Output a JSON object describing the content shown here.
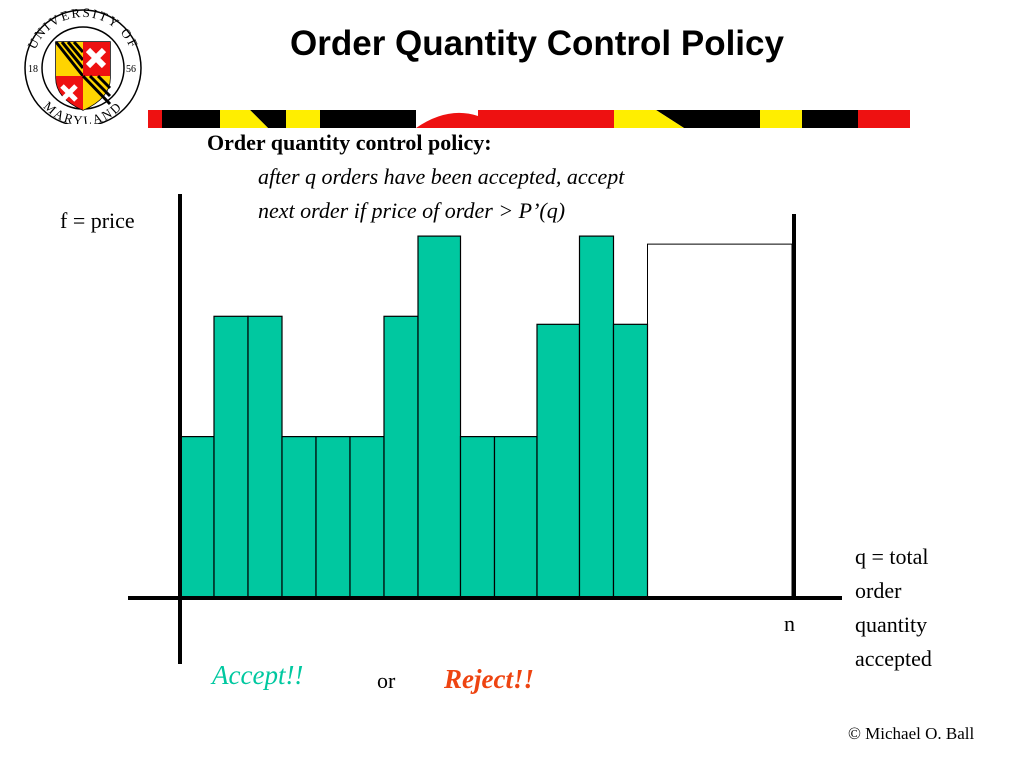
{
  "slide": {
    "title": "Order Quantity Control Policy",
    "logo_text_top": "UNIVERSITY OF",
    "logo_text_bottom": "MARYLAND",
    "logo_year_left": "18",
    "logo_year_right": "56",
    "policy_heading": "Order quantity control policy:",
    "policy_line1": "after q orders have been accepted,  accept",
    "policy_line2": "next order if price of order > P’(q)",
    "n_label": "n",
    "accept_label": "Accept!!",
    "or_label": "or",
    "reject_label": "Reject!!",
    "copyright": "© Michael O. Ball"
  },
  "colors": {
    "bar_fill": "#00c8a0",
    "accept": "#00c8a0",
    "reject": "#ee4411",
    "flag_black": "#000000",
    "flag_yellow": "#ffee00",
    "flag_red": "#ee1111"
  },
  "chart_data": {
    "type": "bar",
    "ylabel": "f = price",
    "xlabel": "q = total order quantity accepted",
    "xlabel_lines": [
      "q = total",
      "order",
      "quantity",
      "accepted"
    ],
    "orders": [
      {
        "width": 1,
        "price": 4
      },
      {
        "width": 1,
        "price": 7
      },
      {
        "width": 1,
        "price": 7
      },
      {
        "width": 1,
        "price": 4
      },
      {
        "width": 1,
        "price": 4
      },
      {
        "width": 1,
        "price": 4
      },
      {
        "width": 1,
        "price": 7
      },
      {
        "width": 1.25,
        "price": 9
      },
      {
        "width": 1,
        "price": 4
      },
      {
        "width": 1.25,
        "price": 4
      },
      {
        "width": 1.25,
        "price": 6.8
      },
      {
        "width": 1,
        "price": 9
      },
      {
        "width": 1,
        "price": 6.8
      }
    ],
    "next_order": {
      "width": 4.25,
      "price": 8.8
    },
    "ylim": [
      0,
      10
    ],
    "grid": false
  }
}
